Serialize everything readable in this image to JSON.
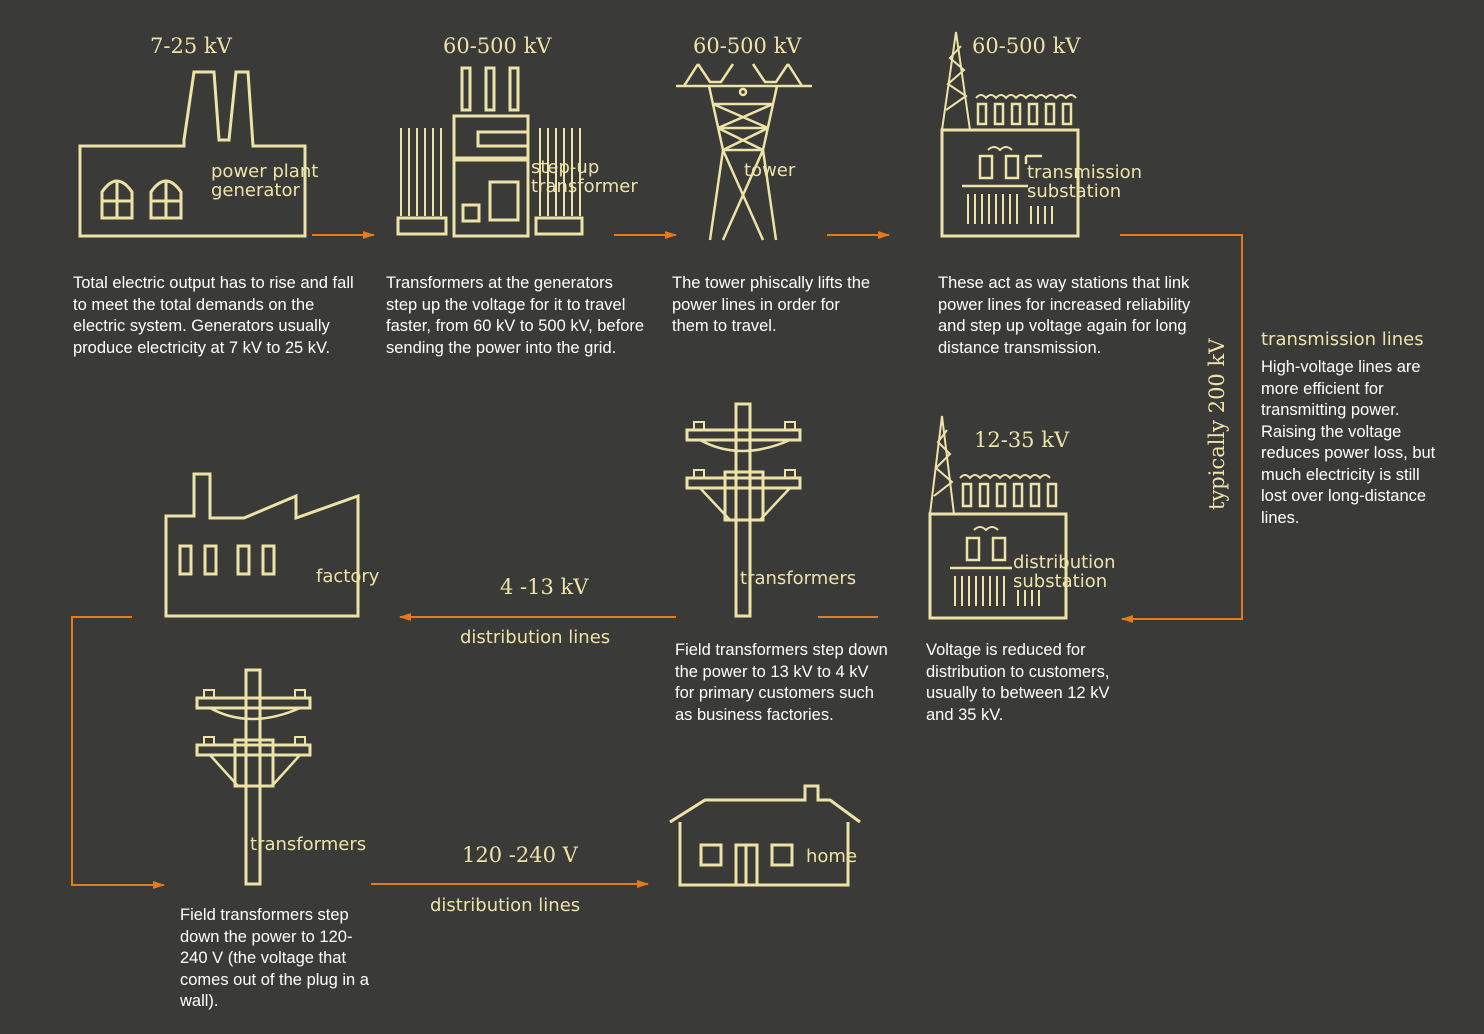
{
  "colors": {
    "background": "#3a3a39",
    "line_art": "#ede3a7",
    "arrow": "#e07b1f",
    "text": "#ffffff"
  },
  "stages": {
    "generator": {
      "voltage": "7-25 kV",
      "label_line1": "power plant",
      "label_line2": "generator",
      "description": "Total electric output has to rise and fall to meet the total demands on the electric system. Generators usually produce electricity at 7 kV to 25 kV."
    },
    "step_up": {
      "voltage": "60-500 kV",
      "label_line1": "step-up",
      "label_line2": "transformer",
      "description": "Transformers at the generators step up the voltage for it to travel faster, from 60 kV to 500 kV, before sending the power into the grid."
    },
    "tower": {
      "voltage": "60-500 kV",
      "label": "tower",
      "description": "The tower phiscally lifts the power lines in order for them to travel."
    },
    "transmission_substation": {
      "voltage": "60-500 kV",
      "label_line1": "transmission",
      "label_line2": "substation",
      "description": "These act as way stations that link power lines for increased reliability and step up voltage again for long distance transmission."
    },
    "transmission_lines": {
      "voltage": "typically 200 kV",
      "title": "transmission lines",
      "description": "High-voltage lines are more efficient for transmitting power. Raising the voltage reduces power loss, but much electricity is still lost over long-distance lines."
    },
    "distribution_substation": {
      "voltage": "12-35 kV",
      "label_line1": "distribution",
      "label_line2": "substation",
      "description": "Voltage is reduced for distribution to customers, usually to between 12 kV and 35 kV."
    },
    "field_transformers_primary": {
      "label": "transformers",
      "description": "Field transformers step down the power to 13 kV to 4 kV for primary customers such as business factories."
    },
    "distribution_lines_factory": {
      "voltage": "4 -13 kV",
      "label": "distribution lines"
    },
    "factory": {
      "label": "factory"
    },
    "field_transformers_home": {
      "label": "transformers",
      "description": "Field transformers step down the power to 120-240 V (the voltage that comes out of the plug in a wall)."
    },
    "distribution_lines_home": {
      "voltage": "120 -240 V",
      "label": "distribution lines"
    },
    "home": {
      "label": "home"
    }
  }
}
